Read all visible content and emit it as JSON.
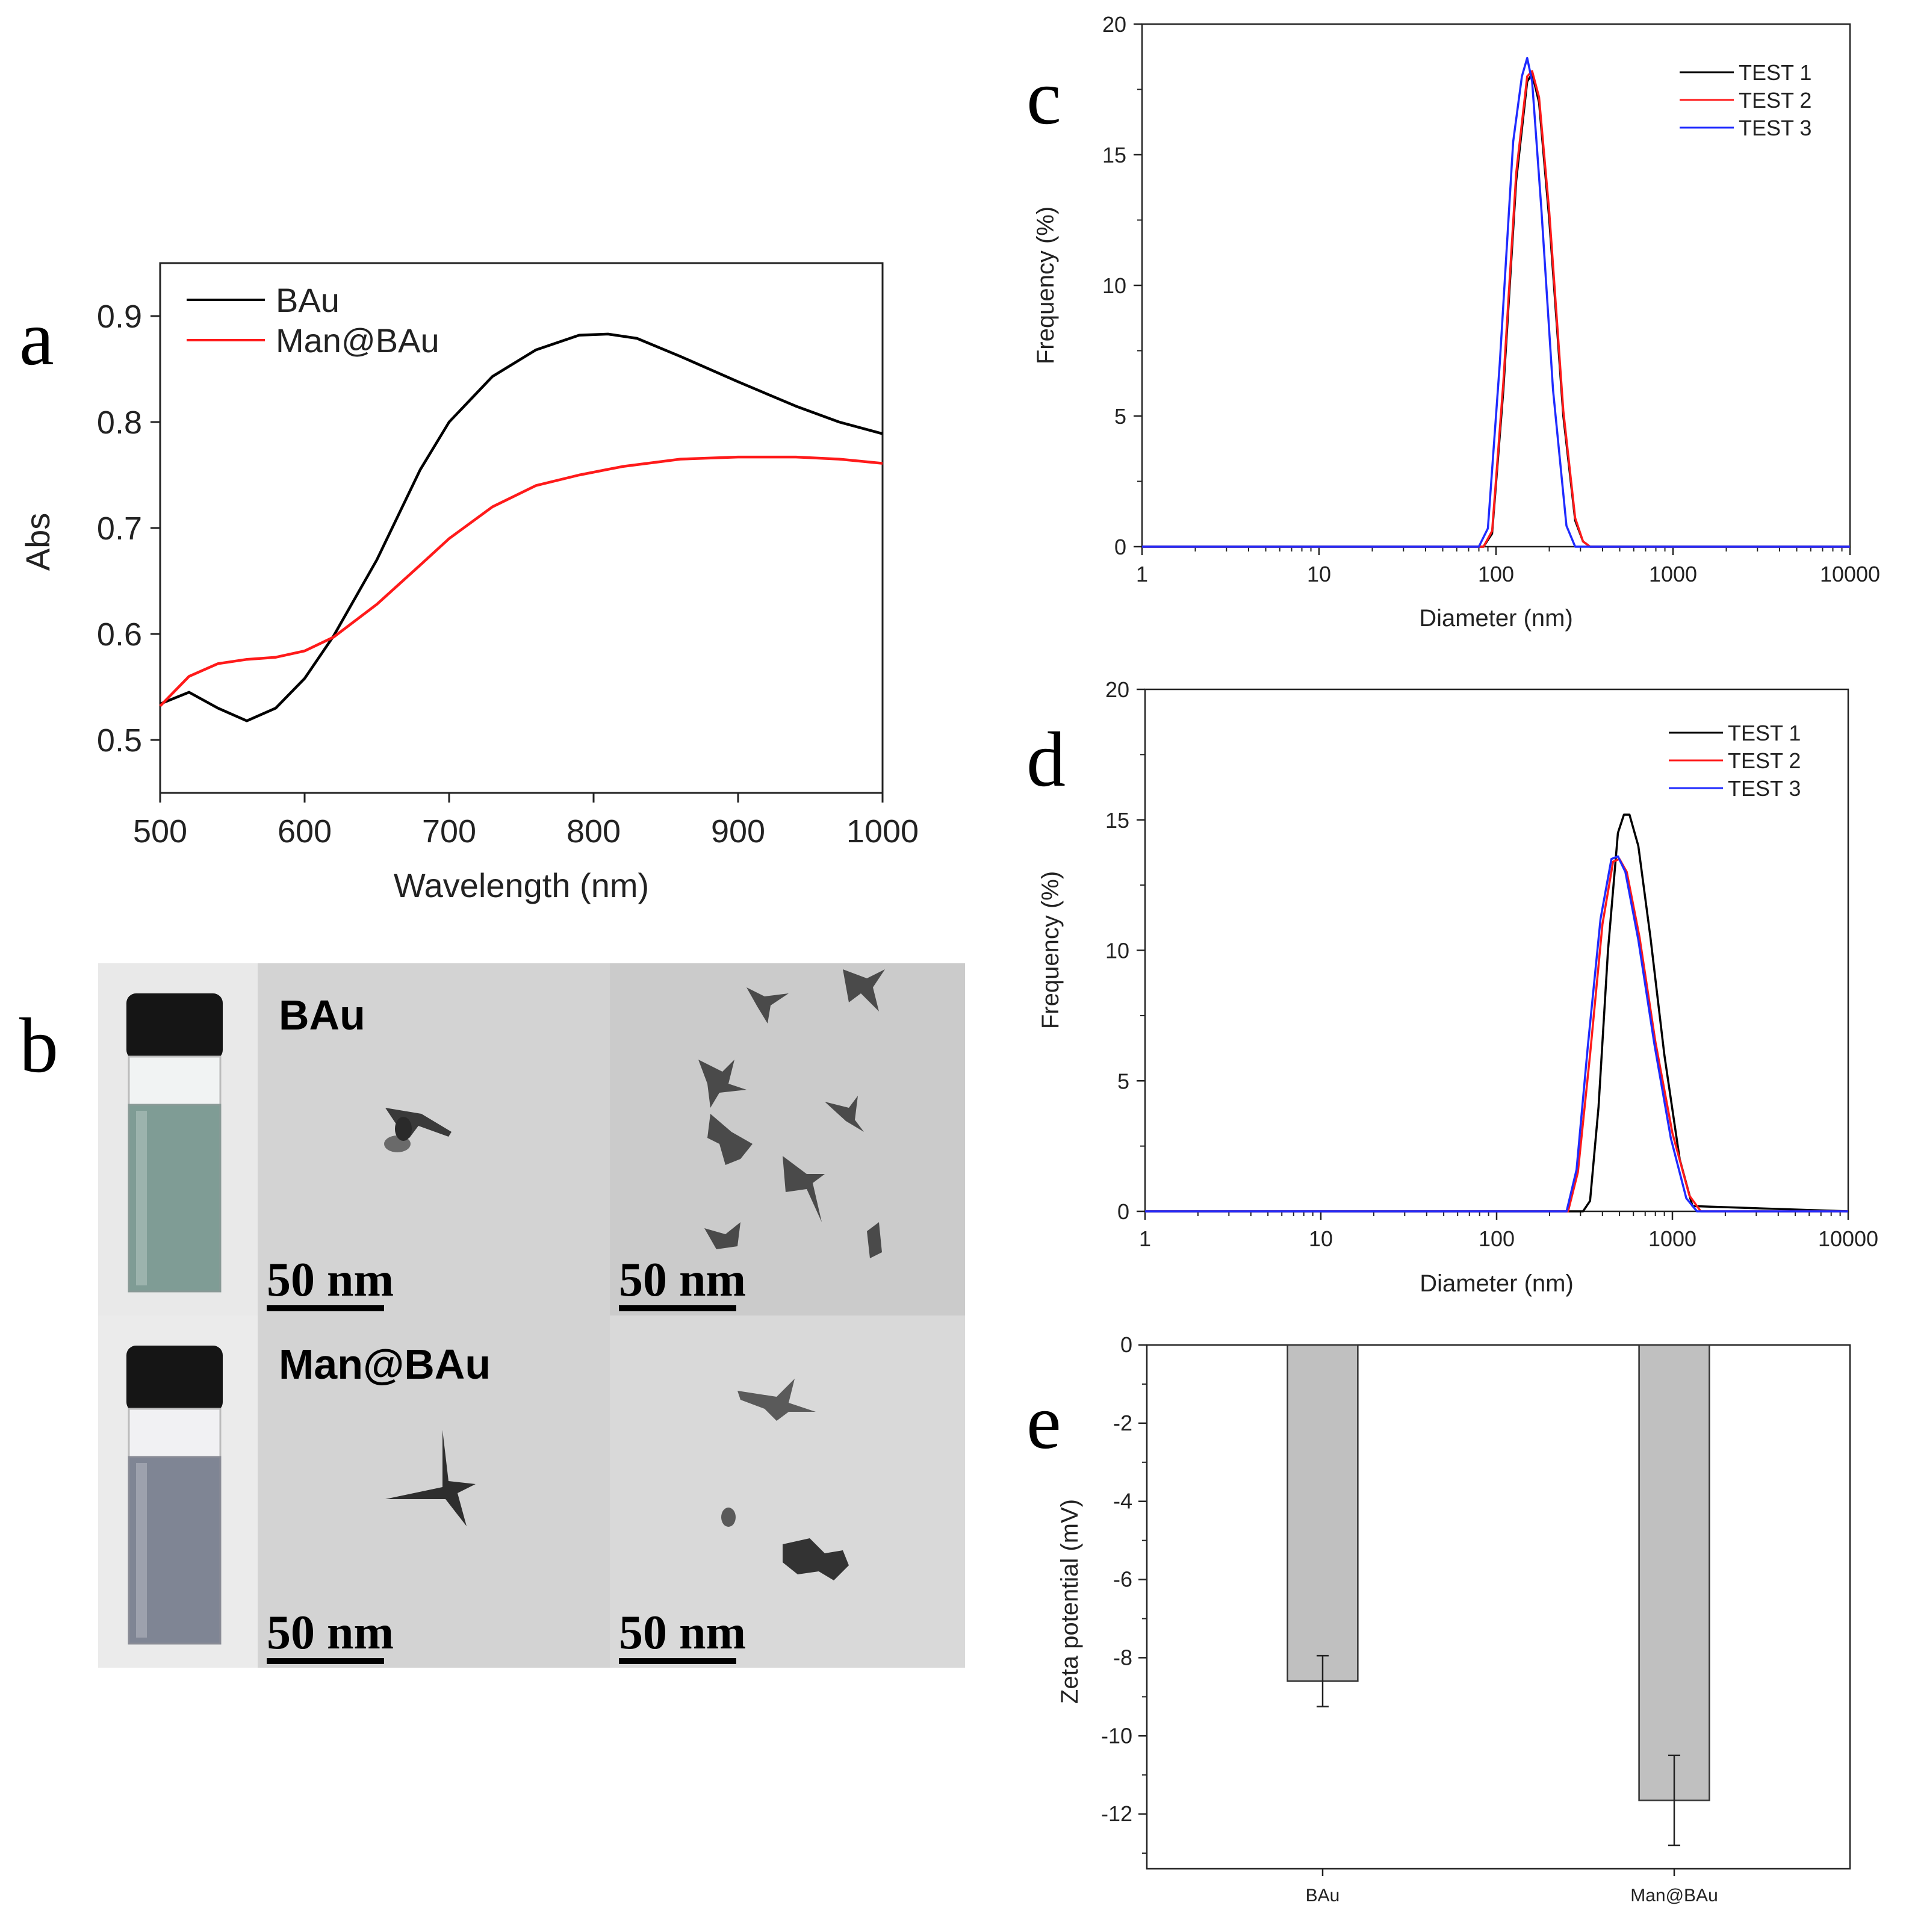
{
  "figure": {
    "panels": {
      "a": "a",
      "b": "b",
      "c": "c",
      "d": "d",
      "e": "e"
    }
  },
  "tem": {
    "label_top": "BAu",
    "label_bottom": "Man@BAu",
    "scale": "50 nm",
    "vial_top_color": "#7f9c95",
    "vial_bottom_color": "#7f8594"
  },
  "colors": {
    "black": "#000000",
    "red": "#ff1a1a",
    "blue": "#1f2bff",
    "bar": "#c0c0c0"
  },
  "chart_data": [
    {
      "id": "a",
      "type": "line",
      "xlabel": "Wavelength (nm)",
      "ylabel": "Abs",
      "xlim": [
        500,
        1000
      ],
      "ylim": [
        0.45,
        0.95
      ],
      "xticks": [
        500,
        600,
        700,
        800,
        900,
        1000
      ],
      "yticks": [
        0.5,
        0.6,
        0.7,
        0.8,
        0.9
      ],
      "legend_position": "top-left",
      "series": [
        {
          "name": "BAu",
          "color": "#000000",
          "x": [
            500,
            520,
            540,
            560,
            580,
            600,
            620,
            650,
            680,
            700,
            730,
            760,
            790,
            810,
            830,
            860,
            900,
            940,
            970,
            1000
          ],
          "y": [
            0.534,
            0.545,
            0.53,
            0.518,
            0.53,
            0.558,
            0.598,
            0.67,
            0.755,
            0.8,
            0.843,
            0.868,
            0.882,
            0.883,
            0.879,
            0.862,
            0.838,
            0.815,
            0.8,
            0.789
          ]
        },
        {
          "name": "Man@BAu",
          "color": "#ff1a1a",
          "x": [
            500,
            520,
            540,
            560,
            580,
            600,
            620,
            650,
            680,
            700,
            730,
            760,
            790,
            820,
            860,
            900,
            940,
            970,
            1000
          ],
          "y": [
            0.532,
            0.56,
            0.572,
            0.576,
            0.578,
            0.584,
            0.597,
            0.628,
            0.665,
            0.69,
            0.72,
            0.74,
            0.75,
            0.758,
            0.765,
            0.767,
            0.767,
            0.765,
            0.761
          ]
        }
      ]
    },
    {
      "id": "c",
      "type": "line",
      "xscale": "log",
      "xlabel": "Diameter (nm)",
      "ylabel": "Frequency (%)",
      "xlim": [
        1,
        10000
      ],
      "ylim": [
        0,
        20
      ],
      "xticks": [
        1,
        10,
        100,
        1000,
        10000
      ],
      "xtick_labels": [
        "1",
        "10",
        "100",
        "1000",
        "10000"
      ],
      "yticks": [
        0,
        5,
        10,
        15,
        20
      ],
      "legend_position": "top-right",
      "series": [
        {
          "name": "TEST 1",
          "color": "#000000",
          "x": [
            1,
            85,
            95,
            110,
            130,
            150,
            160,
            175,
            200,
            240,
            280,
            310,
            340,
            10000
          ],
          "y": [
            0,
            0,
            0.5,
            6,
            14,
            17.8,
            18.1,
            17,
            12.5,
            5,
            1,
            0.2,
            0,
            0
          ]
        },
        {
          "name": "TEST 2",
          "color": "#ff1a1a",
          "x": [
            1,
            85,
            95,
            110,
            130,
            150,
            160,
            175,
            200,
            240,
            280,
            310,
            340,
            10000
          ],
          "y": [
            0,
            0,
            0.6,
            6.3,
            14.3,
            18,
            18.2,
            17.2,
            12.8,
            5.2,
            1.1,
            0.2,
            0,
            0
          ]
        },
        {
          "name": "TEST 3",
          "color": "#1f2bff",
          "x": [
            1,
            80,
            90,
            105,
            125,
            140,
            150,
            160,
            180,
            210,
            250,
            280,
            10000
          ],
          "y": [
            0,
            0,
            0.7,
            7,
            15.5,
            18,
            18.7,
            17.8,
            13,
            6,
            0.8,
            0,
            0
          ]
        }
      ]
    },
    {
      "id": "d",
      "type": "line",
      "xscale": "log",
      "xlabel": "Diameter (nm)",
      "ylabel": "Frequency (%)",
      "xlim": [
        1,
        10000
      ],
      "ylim": [
        0,
        20
      ],
      "xticks": [
        1,
        10,
        100,
        1000,
        10000
      ],
      "xtick_labels": [
        "1",
        "10",
        "100",
        "1000",
        "10000"
      ],
      "yticks": [
        0,
        5,
        10,
        15,
        20
      ],
      "legend_position": "top-right",
      "series": [
        {
          "name": "TEST 1",
          "color": "#000000",
          "x": [
            1,
            310,
            340,
            380,
            430,
            490,
            530,
            570,
            640,
            750,
            900,
            1100,
            1300,
            10000
          ],
          "y": [
            0,
            0,
            0.4,
            4,
            10,
            14.5,
            15.2,
            15.2,
            14,
            10.5,
            6,
            2,
            0.2,
            0
          ]
        },
        {
          "name": "TEST 2",
          "color": "#ff1a1a",
          "x": [
            1,
            255,
            290,
            340,
            400,
            460,
            500,
            550,
            650,
            800,
            1000,
            1250,
            1450,
            10000
          ],
          "y": [
            0,
            0,
            1.5,
            6,
            11,
            13.4,
            13.5,
            13,
            10.5,
            6.5,
            3,
            0.6,
            0,
            0
          ]
        },
        {
          "name": "TEST 3",
          "color": "#1f2bff",
          "x": [
            1,
            250,
            285,
            330,
            390,
            450,
            490,
            540,
            640,
            790,
            980,
            1200,
            1380,
            10000
          ],
          "y": [
            0,
            0,
            1.6,
            6.3,
            11.2,
            13.5,
            13.6,
            13,
            10.4,
            6.4,
            2.8,
            0.5,
            0,
            0
          ]
        }
      ]
    },
    {
      "id": "e",
      "type": "bar",
      "ylabel": "Zeta potential (mV)",
      "xlabel": "",
      "categories": [
        "BAu",
        "Man@BAu"
      ],
      "values": [
        -8.6,
        -11.65
      ],
      "errors": [
        0.65,
        1.15
      ],
      "ylim": [
        -13.4,
        0
      ],
      "yticks": [
        0,
        -2,
        -4,
        -6,
        -8,
        -10,
        -12
      ],
      "color": "#c0c0c0"
    }
  ]
}
